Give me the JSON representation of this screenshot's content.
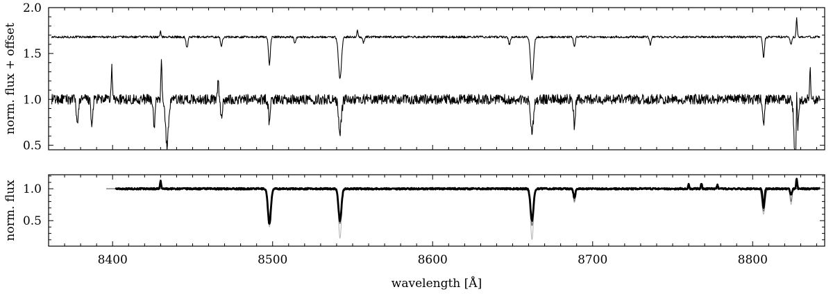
{
  "chart_data": [
    {
      "type": "line",
      "panel": "top",
      "ylabel": "norm. flux + offset",
      "xlim": [
        8360,
        8845
      ],
      "ylim": [
        0.45,
        2.0
      ],
      "yticks": [
        0.5,
        1.0,
        1.5,
        2.0
      ],
      "ytick_labels": [
        "0.5",
        "1.0",
        "1.5",
        "2.0"
      ],
      "grid": false,
      "series": [
        {
          "style": "upper spectrum (offset +0.7)",
          "x_range": [
            8362,
            8842
          ],
          "continuum": 1.68,
          "noise": 0.012,
          "lines": [
            {
              "x": 8446.5,
              "depth": 0.12
            },
            {
              "x": 8468.0,
              "depth": 0.1
            },
            {
              "x": 8498.0,
              "depth": 0.3
            },
            {
              "x": 8514.0,
              "depth": 0.07
            },
            {
              "x": 8542.1,
              "depth": 0.46
            },
            {
              "x": 8556.8,
              "depth": 0.06
            },
            {
              "x": 8648.0,
              "depth": 0.08
            },
            {
              "x": 8662.1,
              "depth": 0.47
            },
            {
              "x": 8688.6,
              "depth": 0.1
            },
            {
              "x": 8736.0,
              "depth": 0.08
            },
            {
              "x": 8806.8,
              "depth": 0.22
            },
            {
              "x": 8824.0,
              "depth": 0.08
            }
          ],
          "spikes": [
            {
              "x": 8430,
              "height": 0.06
            },
            {
              "x": 8553,
              "height": 0.07
            },
            {
              "x": 8827.5,
              "height": 0.2
            }
          ]
        },
        {
          "style": "lower spectrum",
          "x_range": [
            8362,
            8842
          ],
          "continuum": 1.0,
          "noise": 0.055,
          "lines": [
            {
              "x": 8378.0,
              "depth": 0.3
            },
            {
              "x": 8387.0,
              "depth": 0.3
            },
            {
              "x": 8426.0,
              "depth": 0.3
            },
            {
              "x": 8434.0,
              "depth": 0.5
            },
            {
              "x": 8468.0,
              "depth": 0.2
            },
            {
              "x": 8498.0,
              "depth": 0.25
            },
            {
              "x": 8542.1,
              "depth": 0.35
            },
            {
              "x": 8662.1,
              "depth": 0.35
            },
            {
              "x": 8688.6,
              "depth": 0.3
            },
            {
              "x": 8806.8,
              "depth": 0.3
            },
            {
              "x": 8827.0,
              "depth": 0.95
            }
          ],
          "spikes": [
            {
              "x": 8399.5,
              "height": 0.35
            },
            {
              "x": 8430.5,
              "height": 0.4
            },
            {
              "x": 8466.0,
              "height": 0.25
            },
            {
              "x": 8827.5,
              "height": 0.85
            },
            {
              "x": 8836.0,
              "height": 0.3
            }
          ]
        }
      ]
    },
    {
      "type": "line",
      "panel": "bottom",
      "ylabel": "norm. flux",
      "xlabel": "wavelength [Å]",
      "xlim": [
        8360,
        8845
      ],
      "ylim": [
        0.1,
        1.22
      ],
      "xticks": [
        8400,
        8500,
        8600,
        8700,
        8800
      ],
      "xtick_labels": [
        "8400",
        "8500",
        "8600",
        "8700",
        "8800"
      ],
      "yticks": [
        0.5,
        1.0
      ],
      "ytick_labels": [
        "0.5",
        "1.0"
      ],
      "grid": false,
      "series": [
        {
          "style": "observed (black, thick)",
          "color": "#000000",
          "x_range": [
            8402,
            8842
          ],
          "continuum": 1.0,
          "noise": 0.012,
          "lines": [
            {
              "x": 8498.0,
              "depth": 0.55
            },
            {
              "x": 8542.1,
              "depth": 0.5
            },
            {
              "x": 8662.1,
              "depth": 0.5
            },
            {
              "x": 8688.6,
              "depth": 0.15
            },
            {
              "x": 8806.8,
              "depth": 0.3
            },
            {
              "x": 8824.0,
              "depth": 0.1
            }
          ],
          "spikes": [
            {
              "x": 8430,
              "height": 0.12
            },
            {
              "x": 8760,
              "height": 0.08
            },
            {
              "x": 8768,
              "height": 0.08
            },
            {
              "x": 8778,
              "height": 0.06
            },
            {
              "x": 8827.5,
              "height": 0.16
            }
          ]
        },
        {
          "style": "model (light grey)",
          "color": "#b8b8b8",
          "x_range": [
            8396,
            8845
          ],
          "continuum": 1.0,
          "lines": [
            {
              "x": 8498.0,
              "depth": 0.6
            },
            {
              "x": 8542.1,
              "depth": 0.78
            },
            {
              "x": 8662.1,
              "depth": 0.8
            },
            {
              "x": 8688.6,
              "depth": 0.22
            },
            {
              "x": 8806.8,
              "depth": 0.4
            },
            {
              "x": 8824.0,
              "depth": 0.25
            }
          ]
        },
        {
          "style": "model (dark grey)",
          "color": "#666666",
          "x_range": [
            8396,
            8845
          ],
          "continuum": 1.0,
          "lines": [
            {
              "x": 8498.0,
              "depth": 0.45
            },
            {
              "x": 8542.1,
              "depth": 0.55
            },
            {
              "x": 8662.1,
              "depth": 0.58
            },
            {
              "x": 8688.6,
              "depth": 0.2
            },
            {
              "x": 8806.8,
              "depth": 0.35
            },
            {
              "x": 8824.0,
              "depth": 0.2
            }
          ]
        }
      ]
    }
  ]
}
